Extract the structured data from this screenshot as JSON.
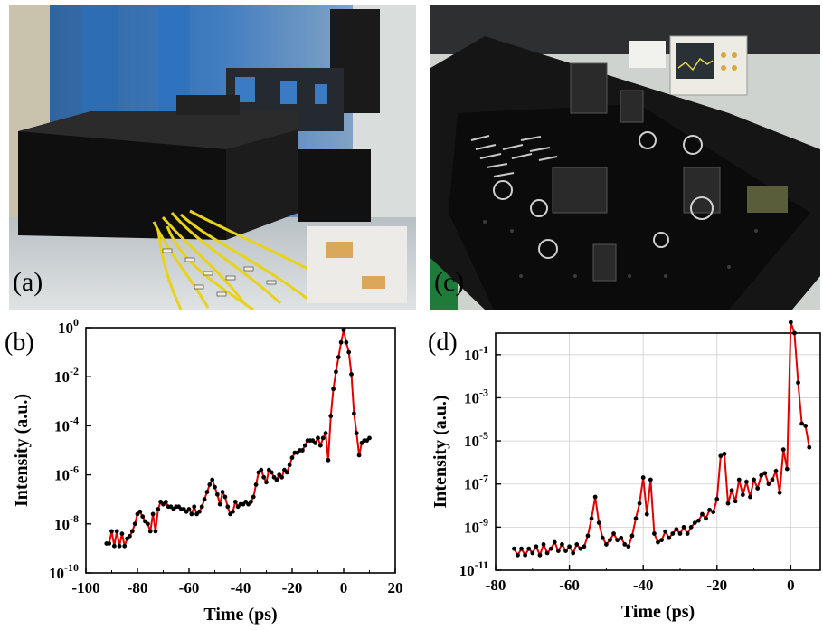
{
  "figure": {
    "panels": {
      "a": {
        "label": "(a)"
      },
      "b": {
        "label": "(b)"
      },
      "c": {
        "label": "(c)"
      },
      "d": {
        "label": "(d)"
      }
    }
  },
  "chart_data": [
    {
      "panel": "(b)",
      "type": "line",
      "xlabel": "Time (ps)",
      "ylabel": "Intensity (a.u.)",
      "xlim": [
        -100,
        20
      ],
      "ylim_exponent": [
        -10,
        0
      ],
      "yscale": "log",
      "x_ticks": [
        "-100",
        "-80",
        "-60",
        "-40",
        "-20",
        "0",
        "20"
      ],
      "y_ticks": [
        {
          "base": "10",
          "exp": "0"
        },
        {
          "base": "10",
          "exp": "-2"
        },
        {
          "base": "10",
          "exp": "-4"
        },
        {
          "base": "10",
          "exp": "-6"
        },
        {
          "base": "10",
          "exp": "-8"
        },
        {
          "base": "10",
          "exp": "-10"
        }
      ],
      "grid": false,
      "line_color": "#e00000",
      "marker_color": "#000000",
      "series": [
        {
          "x": [
            -92,
            -91,
            -90,
            -89,
            -88,
            -87,
            -86,
            -85,
            -84,
            -83,
            -82,
            -81,
            -80,
            -79,
            -78,
            -77,
            -76,
            -75,
            -74,
            -73,
            -72,
            -71,
            -70,
            -69,
            -68,
            -67,
            -66,
            -65,
            -64,
            -63,
            -62,
            -61,
            -60,
            -59,
            -58,
            -57,
            -56,
            -55,
            -54,
            -53,
            -52,
            -51,
            -50,
            -49,
            -48,
            -47,
            -46,
            -45,
            -44,
            -43,
            -42,
            -41,
            -40,
            -39,
            -38,
            -37,
            -36,
            -35,
            -34,
            -33,
            -32,
            -31,
            -30,
            -29,
            -28,
            -27,
            -26,
            -25,
            -24,
            -23,
            -22,
            -21,
            -20,
            -19,
            -18,
            -17,
            -16,
            -15,
            -14,
            -13,
            -12,
            -11,
            -10,
            -9,
            -8,
            -7,
            -6,
            -5,
            -4,
            -3,
            -2,
            -1,
            0,
            1,
            2,
            3,
            4,
            5,
            6,
            7,
            8,
            9,
            10
          ],
          "y_log10": [
            -8.8,
            -8.8,
            -8.3,
            -8.9,
            -8.3,
            -8.9,
            -8.4,
            -8.9,
            -8.6,
            -8.5,
            -8.3,
            -8.0,
            -7.6,
            -7.5,
            -7.7,
            -7.9,
            -8.0,
            -8.3,
            -7.6,
            -8.3,
            -7.4,
            -7.1,
            -7.2,
            -7.1,
            -7.3,
            -7.3,
            -7.4,
            -7.3,
            -7.3,
            -7.4,
            -7.4,
            -7.5,
            -7.4,
            -7.6,
            -7.3,
            -7.6,
            -7.5,
            -7.3,
            -7.0,
            -6.7,
            -6.4,
            -6.2,
            -6.5,
            -6.8,
            -7.2,
            -6.7,
            -6.9,
            -7.3,
            -7.6,
            -7.5,
            -7.1,
            -7.3,
            -7.2,
            -7.2,
            -7.1,
            -7.2,
            -7.1,
            -6.9,
            -6.4,
            -5.9,
            -5.8,
            -6.1,
            -6.3,
            -5.8,
            -5.9,
            -6.1,
            -6.2,
            -6.0,
            -6.1,
            -5.8,
            -5.9,
            -5.6,
            -5.3,
            -5.1,
            -5.1,
            -5.0,
            -5.0,
            -4.8,
            -4.6,
            -4.6,
            -4.6,
            -4.7,
            -4.5,
            -4.8,
            -4.5,
            -4.3,
            -5.4,
            -3.6,
            -2.5,
            -1.8,
            -1.2,
            -0.6,
            -0.1,
            -0.6,
            -1.0,
            -1.9,
            -3.5,
            -4.3,
            -5.2,
            -4.7,
            -4.6,
            -4.6,
            -4.5
          ]
        }
      ]
    },
    {
      "panel": "(d)",
      "type": "line",
      "xlabel": "Time (ps)",
      "ylabel": "Intensity (a.u.)",
      "xlim": [
        -80,
        8
      ],
      "ylim_exponent": [
        -11,
        0
      ],
      "yscale": "log",
      "x_ticks": [
        "-80",
        "-60",
        "-40",
        "-20",
        "0"
      ],
      "y_ticks": [
        {
          "base": "10",
          "exp": "-1"
        },
        {
          "base": "10",
          "exp": "-3"
        },
        {
          "base": "10",
          "exp": "-5"
        },
        {
          "base": "10",
          "exp": "-7"
        },
        {
          "base": "10",
          "exp": "-9"
        },
        {
          "base": "10",
          "exp": "-11"
        }
      ],
      "grid": true,
      "line_color": "#e00000",
      "marker_color": "#000000",
      "series": [
        {
          "x": [
            -75,
            -74,
            -73,
            -72,
            -71,
            -70,
            -69,
            -68,
            -67,
            -66,
            -65,
            -64,
            -63,
            -62,
            -61,
            -60,
            -59,
            -58,
            -57,
            -56,
            -55,
            -54,
            -53,
            -52,
            -51,
            -50,
            -49,
            -48,
            -47,
            -46,
            -45,
            -44,
            -43,
            -42,
            -41,
            -40,
            -39,
            -38,
            -37,
            -36,
            -35,
            -34,
            -33,
            -32,
            -31,
            -30,
            -29,
            -28,
            -27,
            -26,
            -25,
            -24,
            -23,
            -22,
            -21,
            -20,
            -19,
            -18,
            -17,
            -16,
            -15,
            -14,
            -13,
            -12,
            -11,
            -10,
            -9,
            -8,
            -7,
            -6,
            -5,
            -4,
            -3,
            -2,
            -1,
            0,
            1,
            2,
            3,
            4,
            5
          ],
          "y_log10": [
            -10.0,
            -10.3,
            -10.0,
            -10.3,
            -10.0,
            -10.2,
            -9.9,
            -10.3,
            -9.8,
            -10.2,
            -10.0,
            -9.7,
            -10.1,
            -9.8,
            -10.1,
            -9.9,
            -10.2,
            -9.8,
            -10.0,
            -9.9,
            -9.4,
            -8.6,
            -7.6,
            -8.8,
            -9.5,
            -9.8,
            -9.6,
            -9.3,
            -9.6,
            -9.5,
            -9.8,
            -9.9,
            -9.4,
            -8.6,
            -7.9,
            -6.7,
            -8.4,
            -6.8,
            -9.3,
            -9.7,
            -9.6,
            -9.2,
            -9.5,
            -9.3,
            -9.1,
            -9.3,
            -9.0,
            -9.3,
            -9.0,
            -8.8,
            -8.7,
            -8.4,
            -8.6,
            -8.2,
            -8.3,
            -7.7,
            -5.7,
            -5.6,
            -7.9,
            -7.3,
            -7.8,
            -6.8,
            -7.5,
            -6.9,
            -7.6,
            -6.8,
            -7.2,
            -6.6,
            -6.5,
            -7.0,
            -6.8,
            -6.4,
            -7.4,
            -5.4,
            -6.3,
            0.5,
            0.0,
            -2.3,
            -4.2,
            -4.3,
            -5.3
          ]
        }
      ]
    }
  ]
}
